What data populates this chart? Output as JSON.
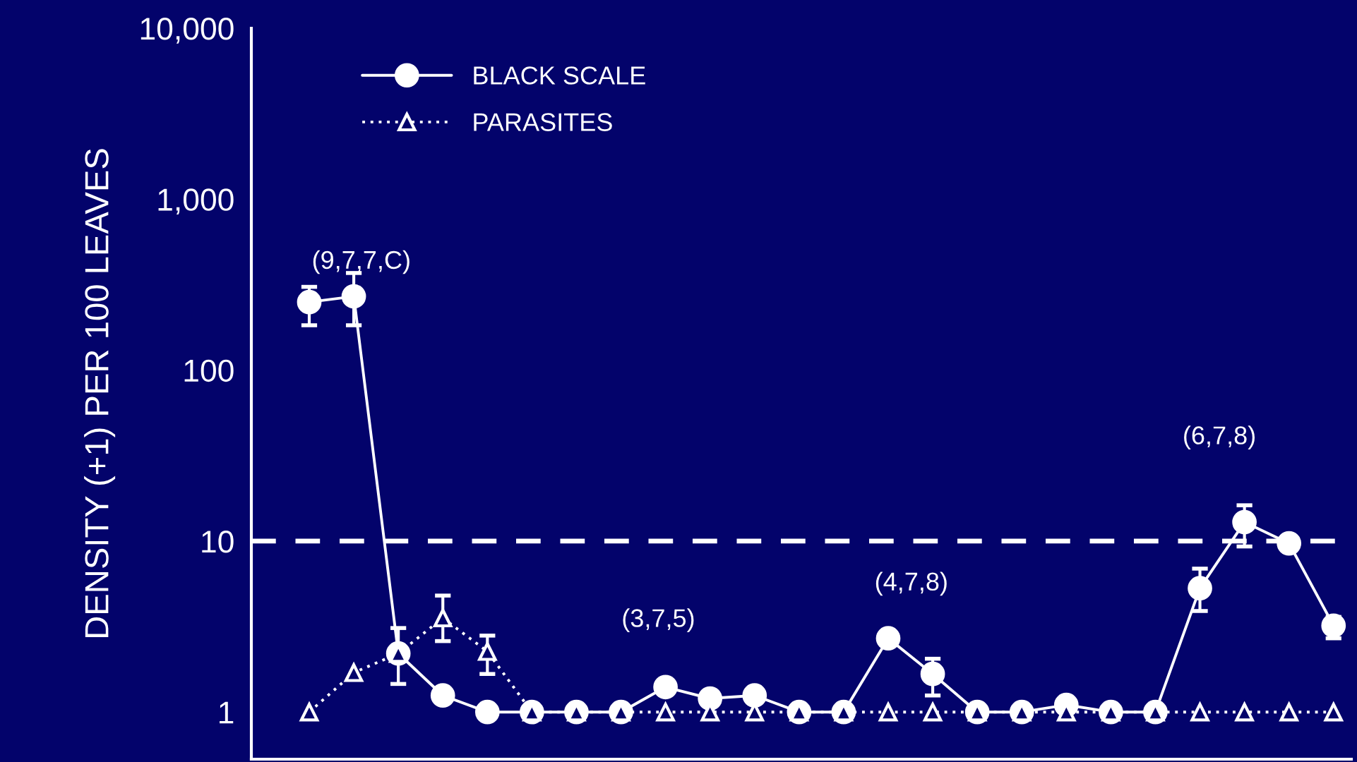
{
  "chart_data": {
    "type": "line",
    "ylabel": "DENSITY (+1) PER 100 LEAVES",
    "categories": [
      null,
      null,
      null,
      null,
      null,
      null,
      null,
      null,
      null,
      null,
      null,
      null,
      null,
      null,
      null,
      null,
      null,
      null,
      null,
      null,
      null,
      null,
      null,
      null
    ],
    "series": [
      {
        "name": "BLACK SCALE",
        "color": "#ffffff",
        "marker": "circle",
        "line_style": "solid",
        "values": [
          250,
          270,
          2.2,
          1.25,
          1.0,
          1.0,
          1.0,
          1.0,
          1.4,
          1.2,
          1.25,
          1.0,
          1.0,
          2.7,
          1.67,
          1.0,
          1.0,
          1.1,
          1.0,
          1.0,
          5.3,
          12.9,
          9.7,
          3.2
        ],
        "errors": [
          [
            183,
            307
          ],
          [
            183,
            370
          ],
          [
            1.46,
            3.1
          ],
          null,
          null,
          null,
          null,
          null,
          null,
          null,
          null,
          null,
          null,
          null,
          [
            1.25,
            2.05
          ],
          null,
          null,
          null,
          null,
          null,
          [
            3.9,
            6.9
          ],
          [
            9.3,
            16.2
          ],
          null,
          [
            2.7,
            3.6
          ]
        ]
      },
      {
        "name": "PARASITES",
        "color": "#ffffff",
        "marker": "triangle",
        "line_style": "dotted",
        "values": [
          1.0,
          1.7,
          2.2,
          3.55,
          2.26,
          1.0,
          1.0,
          1.0,
          1.0,
          1.0,
          1.0,
          1.0,
          1.0,
          1.0,
          1.0,
          1.0,
          1.0,
          1.0,
          1.0,
          1.0,
          1.0,
          1.0,
          1.0,
          1.0
        ],
        "errors": [
          null,
          null,
          null,
          [
            2.6,
            4.8
          ],
          [
            1.67,
            2.8
          ],
          null,
          null,
          null,
          null,
          null,
          null,
          null,
          null,
          null,
          null,
          null,
          null,
          null,
          null,
          null,
          null,
          null,
          null,
          null
        ]
      }
    ],
    "log": "y",
    "ylim": [
      0.53,
      10000
    ],
    "yticks": [
      1,
      10,
      100,
      {
        "value": 1000,
        "label": "1,000"
      },
      {
        "value": 10000,
        "label": "10,000"
      }
    ],
    "tick_labels": "y",
    "ref_lines": [
      {
        "axis": "y",
        "value": 10,
        "color": "#ffffff",
        "line_style": "dashed"
      }
    ],
    "annotations": [
      "(9,7,7,C)",
      "(3,7,5)",
      "(4,7,8)",
      "(6,7,8)"
    ],
    "grid": false,
    "legend": "top left"
  }
}
